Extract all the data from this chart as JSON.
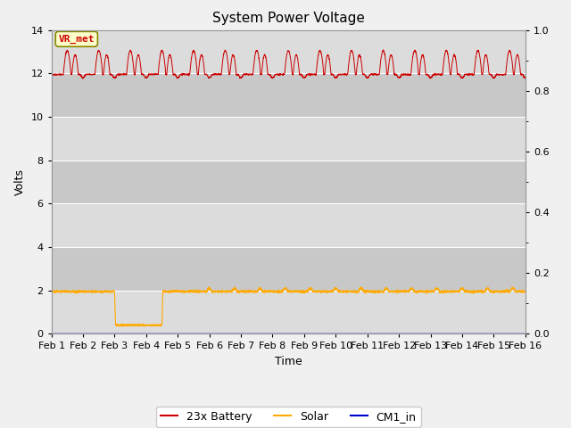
{
  "title": "System Power Voltage",
  "xlabel": "Time",
  "ylabel": "Volts",
  "xlim": [
    0,
    15
  ],
  "ylim_left": [
    0,
    14
  ],
  "ylim_right": [
    0.0,
    1.0
  ],
  "bg_light": "#dcdcdc",
  "bg_dark": "#c8c8c8",
  "annotation_text": "VR_met",
  "annotation_bg": "#ffffcc",
  "annotation_border": "#888800",
  "annotation_text_color": "#cc0000",
  "x_tick_labels": [
    "Feb 1",
    "Feb 2",
    "Feb 3",
    "Feb 4",
    "Feb 5",
    "Feb 6",
    "Feb 7",
    "Feb 8",
    "Feb 9",
    "Feb 10",
    "Feb 11",
    "Feb 12",
    "Feb 13",
    "Feb 14",
    "Feb 15",
    "Feb 16"
  ],
  "legend_labels": [
    "23x Battery",
    "Solar",
    "CM1_in"
  ],
  "legend_colors": [
    "#cc0000",
    "#ffaa00",
    "#0000cc"
  ],
  "title_fontsize": 11,
  "axis_label_fontsize": 9,
  "tick_fontsize": 8
}
